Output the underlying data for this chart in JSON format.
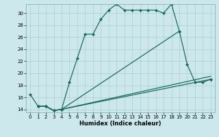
{
  "xlabel": "Humidex (Indice chaleur)",
  "background_color": "#cce8ec",
  "grid_color": "#aacdd4",
  "line_color": "#1a6b5a",
  "xlim": [
    -0.5,
    23.5
  ],
  "ylim": [
    13.5,
    31.5
  ],
  "yticks": [
    14,
    16,
    18,
    20,
    22,
    24,
    26,
    28,
    30
  ],
  "xticks": [
    0,
    1,
    2,
    3,
    4,
    5,
    6,
    7,
    8,
    9,
    10,
    11,
    12,
    13,
    14,
    15,
    16,
    17,
    18,
    19,
    20,
    21,
    22,
    23
  ],
  "line1_x": [
    0,
    1,
    2,
    3,
    4,
    5,
    6,
    7,
    8,
    9,
    10,
    11,
    12,
    13,
    14,
    15,
    16,
    17,
    18,
    19
  ],
  "line1_y": [
    16.5,
    14.5,
    14.5,
    13.8,
    14.0,
    18.5,
    22.5,
    26.5,
    26.5,
    29.0,
    30.5,
    31.5,
    30.5,
    30.5,
    30.5,
    30.5,
    30.5,
    30.0,
    31.5,
    27.0
  ],
  "line2_x": [
    1,
    2,
    3,
    4,
    19,
    20,
    21,
    22,
    23
  ],
  "line2_y": [
    14.5,
    14.5,
    13.8,
    14.0,
    27.0,
    21.5,
    18.5,
    18.5,
    19.0
  ],
  "line3_x": [
    1,
    2,
    3,
    4,
    23
  ],
  "line3_y": [
    14.5,
    14.5,
    13.8,
    14.0,
    19.0
  ],
  "line4_x": [
    1,
    2,
    3,
    4,
    23
  ],
  "line4_y": [
    14.5,
    14.5,
    13.8,
    14.0,
    19.5
  ]
}
